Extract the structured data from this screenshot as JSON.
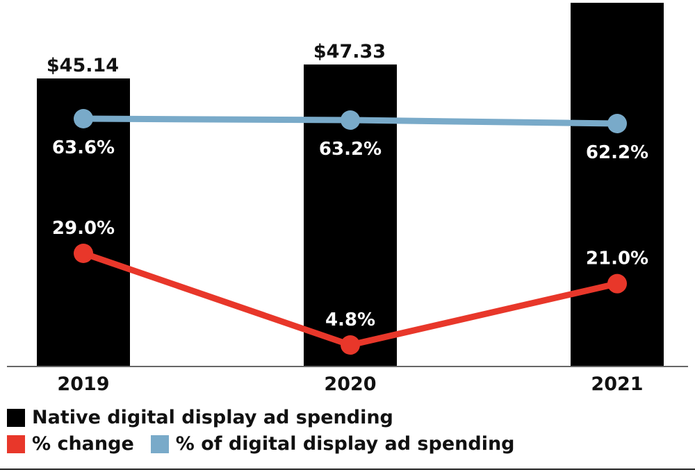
{
  "chart_data": {
    "type": "bar",
    "categories": [
      "2019",
      "2020",
      "2021"
    ],
    "ylim": [
      0,
      57
    ],
    "series": [
      {
        "name": "Native digital display ad spending",
        "kind": "bar",
        "color": "#000000",
        "values": [
          45.14,
          47.33,
          57.0
        ],
        "labels": [
          "$45.14",
          "$47.33",
          ""
        ]
      },
      {
        "name": "% of digital display ad spending",
        "kind": "line",
        "color": "#79aac9",
        "values": [
          63.6,
          63.2,
          62.2
        ],
        "labels": [
          "63.6%",
          "63.2%",
          "62.2%"
        ]
      },
      {
        "name": "% change",
        "kind": "line",
        "color": "#e8372a",
        "values": [
          29.0,
          4.8,
          21.0
        ],
        "labels": [
          "29.0%",
          "4.8%",
          "21.0%"
        ]
      }
    ],
    "legend_placement": "bottom"
  },
  "legend": {
    "items": [
      {
        "label": "Native digital display ad spending",
        "color": "#000000"
      },
      {
        "label": "% change",
        "color": "#e8372a"
      },
      {
        "label": "% of digital display ad spending",
        "color": "#79aac9"
      }
    ]
  }
}
